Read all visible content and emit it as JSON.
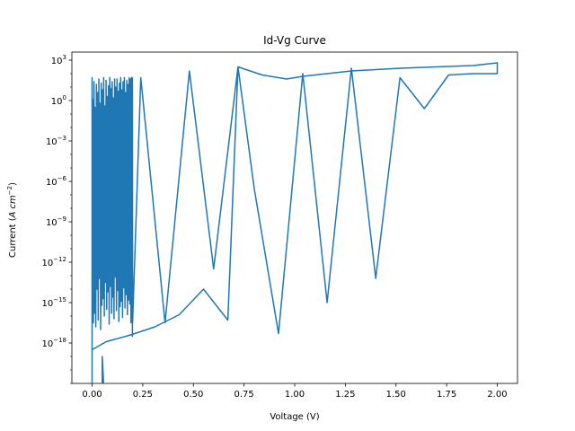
{
  "chart_data": {
    "type": "line",
    "title": "Id-Vg Curve",
    "xlabel": "Voltage (V)",
    "ylabel": "Current (A cm⁻²)",
    "ylabel_parts": {
      "prefix": "Current (",
      "a": "A",
      "cm": "cm",
      "exp": "−2",
      "suffix": ")"
    },
    "xlim": [
      -0.1,
      2.1
    ],
    "ylim_log10": [
      -21,
      3.6
    ],
    "y_scale": "log",
    "grid": false,
    "x_ticks": [
      {
        "value": 0.0,
        "label": "0.00"
      },
      {
        "value": 0.25,
        "label": "0.25"
      },
      {
        "value": 0.5,
        "label": "0.50"
      },
      {
        "value": 0.75,
        "label": "0.75"
      },
      {
        "value": 1.0,
        "label": "1.00"
      },
      {
        "value": 1.25,
        "label": "1.25"
      },
      {
        "value": 1.5,
        "label": "1.50"
      },
      {
        "value": 1.75,
        "label": "1.75"
      },
      {
        "value": 2.0,
        "label": "2.00"
      }
    ],
    "y_ticks": [
      {
        "exp": 3,
        "base": "10",
        "sup": "3"
      },
      {
        "exp": 0,
        "base": "10",
        "sup": "0"
      },
      {
        "exp": -3,
        "base": "10",
        "sup": "−3"
      },
      {
        "exp": -6,
        "base": "10",
        "sup": "−6"
      },
      {
        "exp": -9,
        "base": "10",
        "sup": "−9"
      },
      {
        "exp": -12,
        "base": "10",
        "sup": "−12"
      },
      {
        "exp": -15,
        "base": "10",
        "sup": "−15"
      },
      {
        "exp": -18,
        "base": "10",
        "sup": "−18"
      }
    ],
    "color": "#1f77b4",
    "series": [
      {
        "points_log10": [
          [
            0.0,
            -19.2
          ],
          [
            0.0,
            1.7
          ],
          [
            0.0,
            -17.8
          ],
          [
            0.003,
            0.1
          ],
          [
            0.006,
            -16.5
          ],
          [
            0.009,
            1.4
          ],
          [
            0.012,
            -15.8
          ],
          [
            0.015,
            -0.5
          ],
          [
            0.018,
            -16.8
          ],
          [
            0.021,
            1.2
          ],
          [
            0.024,
            -14.0
          ],
          [
            0.027,
            0.6
          ],
          [
            0.03,
            -16.3
          ],
          [
            0.033,
            1.6
          ],
          [
            0.036,
            -13.2
          ],
          [
            0.039,
            -0.2
          ],
          [
            0.042,
            -17.0
          ],
          [
            0.045,
            1.3
          ],
          [
            0.048,
            -15.2
          ],
          [
            0.051,
            0.8
          ],
          [
            0.054,
            -14.7
          ],
          [
            0.057,
            1.7
          ],
          [
            0.06,
            -16.0
          ],
          [
            0.063,
            -0.4
          ],
          [
            0.066,
            -13.5
          ],
          [
            0.069,
            1.5
          ],
          [
            0.072,
            -15.5
          ],
          [
            0.075,
            0.3
          ],
          [
            0.078,
            -14.2
          ],
          [
            0.081,
            1.1
          ],
          [
            0.084,
            -16.6
          ],
          [
            0.087,
            1.7
          ],
          [
            0.09,
            -13.8
          ],
          [
            0.093,
            0.9
          ],
          [
            0.096,
            -15.8
          ],
          [
            0.099,
            1.4
          ],
          [
            0.102,
            -14.6
          ],
          [
            0.105,
            0.2
          ],
          [
            0.108,
            -16.2
          ],
          [
            0.111,
            1.6
          ],
          [
            0.114,
            -13.1
          ],
          [
            0.117,
            1.0
          ],
          [
            0.12,
            -15.6
          ],
          [
            0.123,
            1.6
          ],
          [
            0.126,
            -14.1
          ],
          [
            0.129,
            0.7
          ],
          [
            0.132,
            -16.4
          ],
          [
            0.135,
            1.3
          ],
          [
            0.138,
            -15.3
          ],
          [
            0.141,
            1.7
          ],
          [
            0.144,
            -14.9
          ],
          [
            0.147,
            0.8
          ],
          [
            0.15,
            -16.1
          ],
          [
            0.153,
            1.4
          ],
          [
            0.156,
            -13.9
          ],
          [
            0.159,
            1.7
          ],
          [
            0.162,
            -15.4
          ],
          [
            0.165,
            0.6
          ],
          [
            0.168,
            -14.4
          ],
          [
            0.171,
            1.5
          ],
          [
            0.174,
            -15.9
          ],
          [
            0.177,
            1.2
          ],
          [
            0.18,
            -14.8
          ],
          [
            0.183,
            1.7
          ],
          [
            0.186,
            -15.1
          ],
          [
            0.189,
            1.6
          ],
          [
            0.192,
            -16.5
          ],
          [
            0.195,
            1.7
          ],
          [
            0.199,
            -17.5
          ],
          [
            0.199,
            1.7
          ],
          [
            0.2,
            -16.5
          ],
          [
            0.24,
            1.7
          ],
          [
            0.36,
            -16.5
          ],
          [
            0.48,
            2.2
          ],
          [
            0.6,
            -12.5
          ],
          [
            0.72,
            2.5
          ],
          [
            0.8,
            -6.5
          ],
          [
            0.92,
            -17.3
          ],
          [
            1.04,
            2.0
          ],
          [
            1.16,
            -15.0
          ],
          [
            1.28,
            2.4
          ],
          [
            1.4,
            -13.2
          ],
          [
            1.52,
            1.7
          ],
          [
            1.64,
            -0.6
          ],
          [
            1.76,
            1.9
          ],
          [
            1.88,
            2.0
          ],
          [
            2.0,
            2.0
          ],
          [
            2.0,
            2.8
          ],
          [
            1.88,
            2.6
          ],
          [
            1.52,
            2.4
          ],
          [
            1.28,
            2.2
          ],
          [
            1.04,
            1.8
          ],
          [
            0.96,
            1.6
          ],
          [
            0.84,
            1.9
          ],
          [
            0.72,
            2.5
          ],
          [
            0.67,
            -16.3
          ],
          [
            0.55,
            -14.0
          ],
          [
            0.43,
            -15.9
          ],
          [
            0.31,
            -16.8
          ],
          [
            0.19,
            -17.4
          ],
          [
            0.07,
            -17.9
          ],
          [
            0.0,
            -18.5
          ],
          [
            0.0,
            -19.2
          ],
          [
            0.0,
            -19.5
          ],
          [
            0.0,
            -20.9
          ],
          [
            0.0,
            -22.0
          ],
          [
            0.05,
            -22.0
          ],
          [
            0.05,
            -19.0
          ],
          [
            0.06,
            -22.0
          ]
        ]
      }
    ]
  }
}
